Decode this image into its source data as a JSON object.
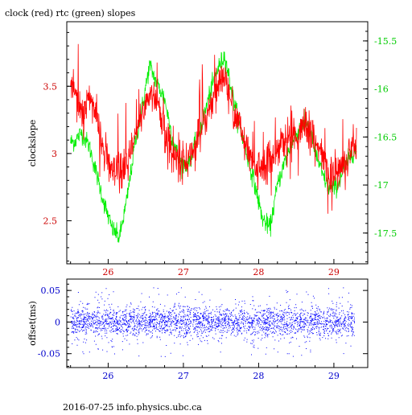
{
  "title": "clock (red) rtc (green) slopes",
  "footer": "2016-07-25 info.physics.ubc.ca",
  "colors": {
    "clock": "#ff0000",
    "rtc": "#00ee00",
    "offset": "#0000ff",
    "axis_left": "#cc0000",
    "axis_right": "#00cc00",
    "axis_x": "#cc0000",
    "axis_bottom": "#0000cc",
    "frame": "#000000",
    "text": "#000000"
  },
  "chart_data": [
    {
      "type": "line",
      "title": "clock (red) rtc (green) slopes",
      "ylabel": "clockslope",
      "xlim": [
        25.45,
        29.45
      ],
      "ylim": [
        2.18,
        3.98
      ],
      "y2lim": [
        -17.82,
        -15.3
      ],
      "x_ticks": [
        26,
        27,
        28,
        29
      ],
      "y_ticks": [
        2.5,
        3,
        3.5
      ],
      "y2_ticks": [
        -17.5,
        -17,
        -16.5,
        -16,
        -15.5
      ],
      "x_tick_labels": [
        "26",
        "27",
        "28",
        "29"
      ],
      "y_tick_labels": [
        "2.5",
        "3",
        "3.5"
      ],
      "y2_tick_labels": [
        "-17.5",
        "-17",
        "-16.5",
        "-16",
        "-15.5"
      ],
      "grid": false,
      "series": [
        {
          "name": "clock",
          "color": "#ff0000",
          "axis": "left",
          "x": [
            25.55,
            25.65,
            25.75,
            25.85,
            25.95,
            26.05,
            26.15,
            26.25,
            26.35,
            26.45,
            26.55,
            26.65,
            26.75,
            26.85,
            26.95,
            27.05,
            27.15,
            27.25,
            27.35,
            27.45,
            27.55,
            27.65,
            27.75,
            27.85,
            27.95,
            28.05,
            28.15,
            28.25,
            28.35,
            28.45,
            28.55,
            28.65,
            28.75,
            28.85,
            28.95,
            29.05,
            29.15,
            29.25
          ],
          "y": [
            3.5,
            3.3,
            3.45,
            3.25,
            3.0,
            2.85,
            2.85,
            2.9,
            3.1,
            3.3,
            3.45,
            3.4,
            3.15,
            3.0,
            2.95,
            2.95,
            3.05,
            3.2,
            3.35,
            3.5,
            3.55,
            3.35,
            3.2,
            3.0,
            2.9,
            2.9,
            2.95,
            3.05,
            3.1,
            3.15,
            3.15,
            3.2,
            3.1,
            2.95,
            2.85,
            2.85,
            2.95,
            3.05
          ]
        },
        {
          "name": "rtc",
          "color": "#00ee00",
          "axis": "right",
          "x": [
            25.55,
            25.65,
            25.75,
            25.85,
            25.95,
            26.05,
            26.15,
            26.25,
            26.35,
            26.45,
            26.55,
            26.65,
            26.75,
            26.85,
            26.95,
            27.05,
            27.15,
            27.25,
            27.35,
            27.45,
            27.55,
            27.65,
            27.75,
            27.85,
            27.95,
            28.05,
            28.15,
            28.25,
            28.35,
            28.45,
            28.55,
            28.65,
            28.75,
            28.85,
            28.95,
            29.05,
            29.15,
            29.25
          ],
          "y": [
            -16.55,
            -16.45,
            -16.6,
            -16.9,
            -17.2,
            -17.45,
            -17.55,
            -17.15,
            -16.6,
            -16.2,
            -15.75,
            -15.95,
            -16.1,
            -16.5,
            -16.75,
            -16.8,
            -16.6,
            -16.35,
            -16.05,
            -15.8,
            -15.65,
            -16.05,
            -16.4,
            -16.7,
            -17.0,
            -17.35,
            -17.45,
            -17.0,
            -16.75,
            -16.55,
            -16.4,
            -16.35,
            -16.65,
            -16.9,
            -17.05,
            -17.0,
            -16.8,
            -16.65
          ]
        }
      ]
    },
    {
      "type": "scatter",
      "ylabel": "offset(ms)",
      "xlim": [
        25.45,
        29.45
      ],
      "ylim": [
        -0.072,
        0.068
      ],
      "x_ticks": [
        26,
        27,
        28,
        29
      ],
      "y_ticks": [
        -0.05,
        0,
        0.05
      ],
      "x_tick_labels": [
        "26",
        "27",
        "28",
        "29"
      ],
      "y_tick_labels": [
        "-0.05",
        "0",
        "0.05"
      ],
      "grid": false,
      "series": [
        {
          "name": "offset",
          "color": "#0000ff",
          "x_range": [
            25.5,
            29.27
          ],
          "center": 0.0,
          "core_spread": 0.012,
          "outlier_extent": 0.055
        }
      ]
    }
  ]
}
